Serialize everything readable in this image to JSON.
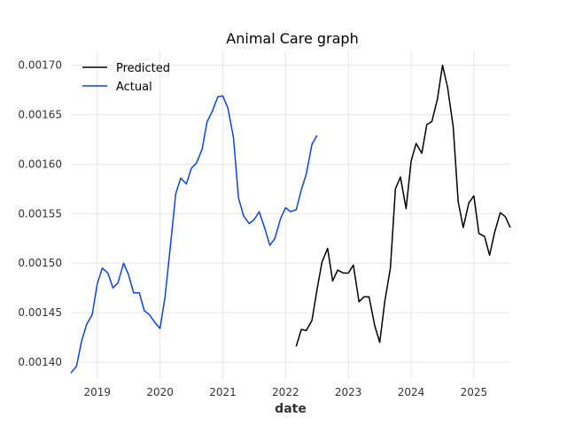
{
  "chart_data": {
    "type": "line",
    "title": "Animal Care graph",
    "xlabel": "date",
    "ylabel": "",
    "xlim": [
      2018.58,
      2025.58
    ],
    "ylim": [
      0.001383,
      0.001714
    ],
    "x_ticks": [
      2019,
      2020,
      2021,
      2022,
      2023,
      2024,
      2025
    ],
    "x_tick_labels": [
      "2019",
      "2020",
      "2021",
      "2022",
      "2023",
      "2024",
      "2025"
    ],
    "y_ticks": [
      0.0014,
      0.00145,
      0.0015,
      0.00155,
      0.0016,
      0.00165,
      0.0017
    ],
    "y_tick_labels": [
      "0.00140",
      "0.00145",
      "0.00150",
      "0.00155",
      "0.00160",
      "0.00165",
      "0.00170"
    ],
    "grid": true,
    "legend_position": "top-left",
    "series": [
      {
        "name": "Predicted",
        "color": "#000000",
        "x": [
          2022.17,
          2022.25,
          2022.33,
          2022.42,
          2022.5,
          2022.58,
          2022.67,
          2022.75,
          2022.83,
          2022.92,
          2023.0,
          2023.08,
          2023.17,
          2023.25,
          2023.33,
          2023.42,
          2023.5,
          2023.58,
          2023.67,
          2023.75,
          2023.83,
          2023.92,
          2024.0,
          2024.08,
          2024.17,
          2024.25,
          2024.33,
          2024.42,
          2024.5,
          2024.58,
          2024.67,
          2024.75,
          2024.83,
          2024.92,
          2025.0,
          2025.08,
          2025.17,
          2025.25,
          2025.33,
          2025.42,
          2025.5,
          2025.58
        ],
        "y": [
          0.001416,
          0.001433,
          0.001432,
          0.001442,
          0.001473,
          0.001501,
          0.001515,
          0.001482,
          0.001493,
          0.00149,
          0.00149,
          0.001498,
          0.001461,
          0.001466,
          0.001466,
          0.001437,
          0.00142,
          0.001461,
          0.001495,
          0.001575,
          0.001587,
          0.001555,
          0.001603,
          0.001621,
          0.001611,
          0.00164,
          0.001643,
          0.001666,
          0.0017,
          0.001678,
          0.001638,
          0.001562,
          0.001536,
          0.001561,
          0.001568,
          0.00153,
          0.001527,
          0.001508,
          0.001531,
          0.001551,
          0.001547,
          0.001536
        ]
      },
      {
        "name": "Actual",
        "color": "#0a44e6",
        "x": [
          2018.58,
          2018.67,
          2018.75,
          2018.83,
          2018.92,
          2019.0,
          2019.08,
          2019.17,
          2019.25,
          2019.33,
          2019.42,
          2019.5,
          2019.58,
          2019.67,
          2019.75,
          2019.83,
          2019.92,
          2020.0,
          2020.08,
          2020.17,
          2020.25,
          2020.33,
          2020.42,
          2020.5,
          2020.58,
          2020.67,
          2020.75,
          2020.83,
          2020.92,
          2021.0,
          2021.08,
          2021.17,
          2021.25,
          2021.33,
          2021.42,
          2021.5,
          2021.58,
          2021.67,
          2021.75,
          2021.83,
          2021.92,
          2022.0,
          2022.08,
          2022.17,
          2022.25,
          2022.33,
          2022.42,
          2022.5
        ],
        "y": [
          0.001389,
          0.001396,
          0.001421,
          0.001438,
          0.001448,
          0.001479,
          0.001495,
          0.00149,
          0.001475,
          0.00148,
          0.0015,
          0.001488,
          0.00147,
          0.00147,
          0.001452,
          0.001448,
          0.00144,
          0.001434,
          0.001466,
          0.00152,
          0.00157,
          0.001586,
          0.00158,
          0.001596,
          0.001601,
          0.001615,
          0.001643,
          0.001653,
          0.001668,
          0.001669,
          0.001657,
          0.001627,
          0.001566,
          0.001548,
          0.00154,
          0.001544,
          0.001552,
          0.001535,
          0.001518,
          0.001525,
          0.001545,
          0.001556,
          0.001552,
          0.001554,
          0.001574,
          0.00159,
          0.00162,
          0.001629
        ]
      }
    ]
  }
}
